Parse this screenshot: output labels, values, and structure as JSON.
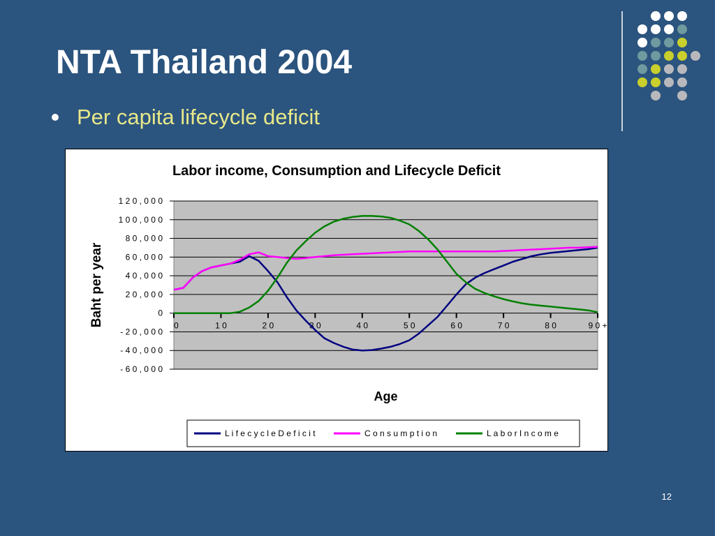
{
  "slide": {
    "title": "NTA Thailand 2004",
    "bullet": "Per capita lifecycle deficit",
    "page_number": "12"
  },
  "decor": {
    "dot_colors": [
      "#ffffff",
      "#6f9a9f",
      "#c9cf2c",
      "#b9b9bd"
    ]
  },
  "chart_data": {
    "type": "line",
    "title": "Labor income, Consumption and Lifecycle Deficit",
    "xlabel": "Age",
    "ylabel": "Baht per year",
    "xlim": [
      0,
      90
    ],
    "ylim": [
      -60000,
      120000
    ],
    "yticks": [
      120000,
      100000,
      80000,
      60000,
      40000,
      20000,
      0,
      -20000,
      -40000,
      -60000
    ],
    "ytick_labels": [
      "1 2 0 , 0 0 0",
      "1 0 0 , 0 0 0",
      "8 0 , 0 0 0",
      "6 0 , 0 0 0",
      "4 0 , 0 0 0",
      "2 0 , 0 0 0",
      "0",
      "- 2 0 , 0 0 0",
      "- 4 0 , 0 0 0",
      "- 6 0 , 0 0 0"
    ],
    "xticks": [
      0,
      10,
      20,
      30,
      40,
      50,
      60,
      70,
      80,
      90
    ],
    "xtick_labels": [
      "0",
      "1 0",
      "2 0",
      "3 0",
      "4 0",
      "5 0",
      "6 0",
      "7 0",
      "8 0",
      "9 0 +"
    ],
    "grid": "horizontal",
    "plot_background": "#c0c0c0",
    "legend_position": "bottom",
    "series": [
      {
        "name": "L i f e c y c l e   D e f i c i t",
        "color": "#000080",
        "x": [
          0,
          2,
          4,
          6,
          8,
          10,
          12,
          14,
          16,
          18,
          20,
          22,
          24,
          26,
          28,
          30,
          32,
          34,
          36,
          38,
          40,
          42,
          44,
          46,
          48,
          50,
          52,
          54,
          56,
          58,
          60,
          62,
          64,
          66,
          68,
          70,
          72,
          74,
          76,
          78,
          80,
          82,
          84,
          86,
          88,
          90
        ],
        "y": [
          25000,
          27000,
          38000,
          45000,
          49000,
          51000,
          53000,
          55000,
          61000,
          56000,
          45000,
          33000,
          17000,
          3000,
          -8000,
          -18000,
          -27000,
          -32000,
          -36000,
          -39000,
          -40000,
          -39500,
          -38000,
          -36000,
          -33000,
          -29000,
          -22000,
          -13000,
          -4000,
          8000,
          20000,
          31000,
          38000,
          43000,
          47000,
          51000,
          55000,
          58000,
          61000,
          63000,
          64500,
          65500,
          66500,
          67500,
          68500,
          70000
        ]
      },
      {
        "name": "C o n s u m p t i o n",
        "color": "#ff00ff",
        "x": [
          0,
          2,
          4,
          6,
          8,
          10,
          12,
          14,
          16,
          18,
          20,
          22,
          24,
          26,
          28,
          30,
          32,
          34,
          36,
          38,
          40,
          42,
          44,
          46,
          48,
          50,
          52,
          54,
          56,
          58,
          60,
          62,
          64,
          66,
          68,
          70,
          72,
          74,
          76,
          78,
          80,
          82,
          84,
          86,
          88,
          90
        ],
        "y": [
          25000,
          27000,
          38000,
          45000,
          49000,
          51000,
          53000,
          57000,
          63000,
          65000,
          61000,
          60000,
          59000,
          58000,
          59000,
          60000,
          61000,
          62000,
          62500,
          63000,
          63500,
          64000,
          64500,
          65000,
          65500,
          66000,
          66000,
          66000,
          66000,
          66000,
          66000,
          66000,
          66000,
          66000,
          66000,
          66500,
          67000,
          67500,
          68000,
          68500,
          69000,
          69500,
          70000,
          70000,
          70500,
          71000
        ]
      },
      {
        "name": "L a b o r   I n c o m e",
        "color": "#008000",
        "x": [
          0,
          2,
          4,
          6,
          8,
          10,
          12,
          14,
          16,
          18,
          20,
          22,
          24,
          26,
          28,
          30,
          32,
          34,
          36,
          38,
          40,
          42,
          44,
          46,
          48,
          50,
          52,
          54,
          56,
          58,
          60,
          62,
          64,
          66,
          68,
          70,
          72,
          74,
          76,
          78,
          80,
          82,
          84,
          86,
          88,
          90
        ],
        "y": [
          0,
          0,
          0,
          0,
          0,
          0,
          0,
          1500,
          6000,
          13000,
          24000,
          38000,
          54000,
          67000,
          77000,
          86000,
          93000,
          98000,
          101000,
          103000,
          104000,
          104000,
          103500,
          102000,
          99000,
          95000,
          88000,
          79000,
          68000,
          55000,
          42000,
          33000,
          26000,
          21500,
          18000,
          15000,
          12500,
          10500,
          9000,
          8000,
          7000,
          6000,
          5000,
          4000,
          3000,
          1000
        ]
      }
    ]
  }
}
